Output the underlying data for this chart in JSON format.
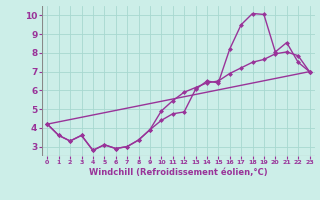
{
  "xlabel": "Windchill (Refroidissement éolien,°C)",
  "background_color": "#cceee8",
  "line_color": "#993399",
  "xlim": [
    -0.5,
    23.5
  ],
  "ylim": [
    2.5,
    10.5
  ],
  "xticks": [
    0,
    1,
    2,
    3,
    4,
    5,
    6,
    7,
    8,
    9,
    10,
    11,
    12,
    13,
    14,
    15,
    16,
    17,
    18,
    19,
    20,
    21,
    22,
    23
  ],
  "yticks": [
    3,
    4,
    5,
    6,
    7,
    8,
    9,
    10
  ],
  "grid_color": "#a8d8d0",
  "series1_x": [
    0,
    1,
    2,
    3,
    4,
    5,
    6,
    7,
    8,
    9,
    10,
    11,
    12,
    13,
    14,
    15,
    16,
    17,
    18,
    19,
    20,
    21,
    22,
    23
  ],
  "series1_y": [
    4.2,
    3.6,
    3.3,
    3.6,
    2.8,
    3.1,
    2.9,
    3.0,
    3.35,
    3.9,
    4.4,
    4.75,
    4.85,
    6.05,
    6.5,
    6.4,
    8.2,
    9.5,
    10.1,
    10.05,
    8.05,
    8.55,
    7.5,
    7.0
  ],
  "series2_x": [
    0,
    1,
    2,
    3,
    4,
    5,
    6,
    7,
    8,
    9,
    10,
    11,
    12,
    13,
    14,
    15,
    16,
    17,
    18,
    19,
    20,
    21,
    22,
    23
  ],
  "series2_y": [
    4.2,
    3.6,
    3.3,
    3.6,
    2.8,
    3.1,
    2.9,
    3.0,
    3.35,
    3.9,
    4.9,
    5.45,
    5.9,
    6.15,
    6.4,
    6.5,
    6.9,
    7.2,
    7.5,
    7.65,
    7.95,
    8.05,
    7.85,
    7.0
  ],
  "series3_x": [
    0,
    23
  ],
  "series3_y": [
    4.2,
    7.0
  ],
  "marker_size": 2.5,
  "linewidth": 1.0
}
